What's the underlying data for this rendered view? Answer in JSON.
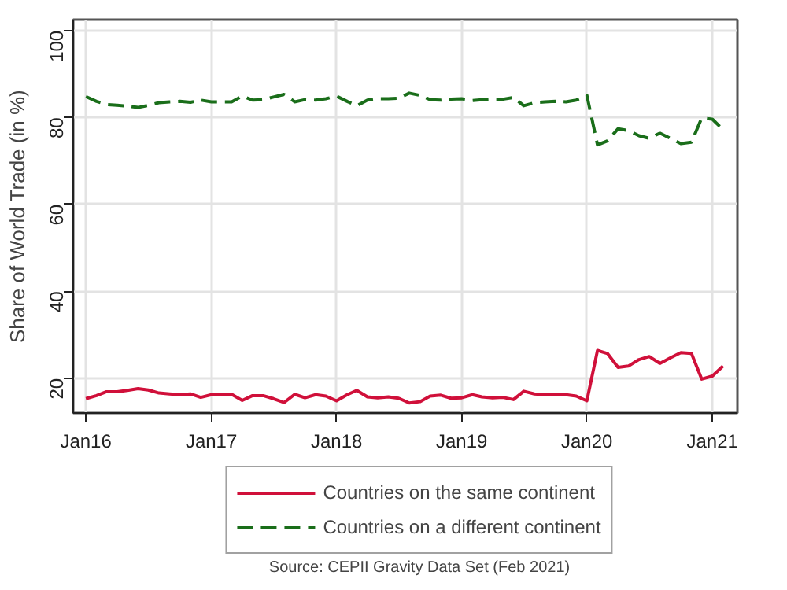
{
  "chart_data": {
    "type": "line",
    "ylabel": "Share of World Trade (in %)",
    "annotations": [
      "Source: CEPII Gravity Data Set (Feb 2021)"
    ],
    "x": [
      "2016-01",
      "2016-02",
      "2016-03",
      "2016-04",
      "2016-05",
      "2016-06",
      "2016-07",
      "2016-08",
      "2016-09",
      "2016-10",
      "2016-11",
      "2016-12",
      "2017-01",
      "2017-02",
      "2017-03",
      "2017-04",
      "2017-05",
      "2017-06",
      "2017-07",
      "2017-08",
      "2017-09",
      "2017-10",
      "2017-11",
      "2017-12",
      "2018-01",
      "2018-02",
      "2018-03",
      "2018-04",
      "2018-05",
      "2018-06",
      "2018-07",
      "2018-08",
      "2018-09",
      "2018-10",
      "2018-11",
      "2018-12",
      "2019-01",
      "2019-02",
      "2019-03",
      "2019-04",
      "2019-05",
      "2019-06",
      "2019-07",
      "2019-08",
      "2019-09",
      "2019-10",
      "2019-11",
      "2019-12",
      "2020-01",
      "2020-02",
      "2020-03",
      "2020-04",
      "2020-05",
      "2020-06",
      "2020-07",
      "2020-08",
      "2020-09",
      "2020-10",
      "2020-11",
      "2020-12",
      "2021-01",
      "2021-02"
    ],
    "series": [
      {
        "name": "Countries on the same continent",
        "color": "#d0103a",
        "line_style": "solid",
        "values": [
          15.3,
          16.0,
          16.9,
          16.9,
          17.2,
          17.6,
          17.3,
          16.6,
          16.4,
          16.2,
          16.4,
          15.6,
          16.2,
          16.2,
          16.3,
          14.9,
          16.0,
          16.0,
          15.3,
          14.4,
          16.3,
          15.5,
          16.2,
          15.9,
          14.8,
          16.2,
          17.2,
          15.7,
          15.5,
          15.7,
          15.4,
          14.3,
          14.6,
          15.9,
          16.1,
          15.4,
          15.5,
          16.2,
          15.7,
          15.5,
          15.6,
          15.1,
          17.0,
          16.4,
          16.2,
          16.2,
          16.2,
          15.9,
          14.8,
          26.4,
          25.7,
          22.5,
          22.8,
          24.3,
          25.0,
          23.4,
          24.7,
          25.9,
          25.7,
          19.8,
          20.5,
          22.8
        ]
      },
      {
        "name": "Countries on a different continent",
        "color": "#1a6e1a",
        "line_style": "dashed",
        "values": [
          84.8,
          83.7,
          83.0,
          82.8,
          82.6,
          82.3,
          82.8,
          83.4,
          83.6,
          83.7,
          83.5,
          84.0,
          83.6,
          83.6,
          83.6,
          84.9,
          84.0,
          84.1,
          84.7,
          85.3,
          83.6,
          84.1,
          84.0,
          84.3,
          84.9,
          83.7,
          82.7,
          84.0,
          84.3,
          84.3,
          84.4,
          85.6,
          85.1,
          84.1,
          84.0,
          84.2,
          84.3,
          83.9,
          84.1,
          84.2,
          84.2,
          84.6,
          82.7,
          83.4,
          83.6,
          83.7,
          83.6,
          84.0,
          85.1,
          73.7,
          74.6,
          77.4,
          77.0,
          75.8,
          75.2,
          76.4,
          75.2,
          74.0,
          74.3,
          79.9,
          79.6,
          77.2
        ]
      }
    ],
    "xlim": [
      "2015-11-25",
      "2021-03-15"
    ],
    "xticks": [
      {
        "value": "2016-01",
        "label": "Jan16"
      },
      {
        "value": "2017-01",
        "label": "Jan17"
      },
      {
        "value": "2018-01",
        "label": "Jan18"
      },
      {
        "value": "2019-01",
        "label": "Jan19"
      },
      {
        "value": "2020-01",
        "label": "Jan20"
      },
      {
        "value": "2021-01",
        "label": "Jan21"
      }
    ],
    "ylim": [
      12,
      102.5
    ],
    "yticks": [
      20,
      40,
      60,
      80,
      100
    ],
    "grid": true,
    "legend": "bottom"
  }
}
